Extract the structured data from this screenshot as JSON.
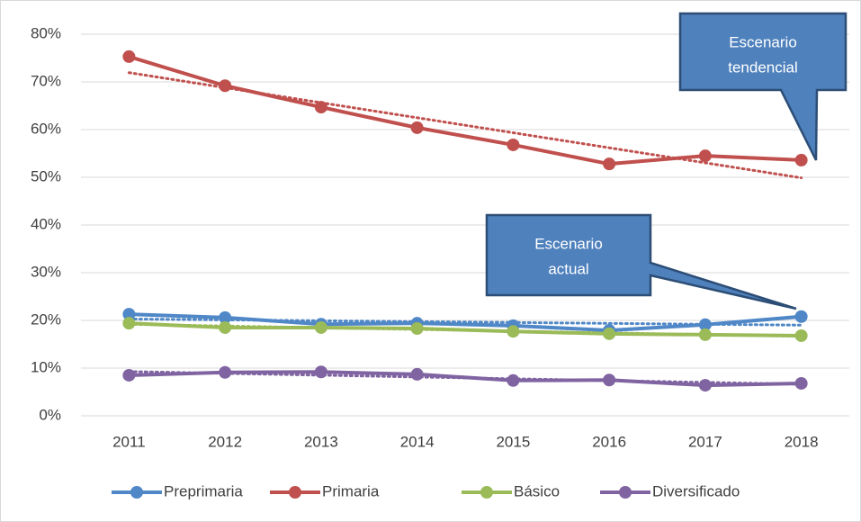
{
  "chart_data": {
    "type": "line",
    "categories": [
      "2011",
      "2012",
      "2013",
      "2014",
      "2015",
      "2016",
      "2017",
      "2018"
    ],
    "ylim": [
      0,
      80
    ],
    "yticks": [
      {
        "value": 0,
        "label": "0%"
      },
      {
        "value": 10,
        "label": "10%"
      },
      {
        "value": 20,
        "label": "20%"
      },
      {
        "value": 30,
        "label": "30%"
      },
      {
        "value": 40,
        "label": "40%"
      },
      {
        "value": 50,
        "label": "50%"
      },
      {
        "value": 60,
        "label": "60%"
      },
      {
        "value": 70,
        "label": "70%"
      },
      {
        "value": 80,
        "label": "80%"
      }
    ],
    "grid": true,
    "legend": "bottom",
    "trendline": true,
    "series": [
      {
        "name": "Preprimaria",
        "color": "#4f87c7",
        "values": [
          21.3,
          20.6,
          19.2,
          19.4,
          18.9,
          17.9,
          19.1,
          20.8
        ]
      },
      {
        "name": "Primaria",
        "color": "#c0504d",
        "values": [
          75.3,
          69.2,
          64.7,
          60.4,
          56.8,
          52.8,
          54.5,
          53.6
        ]
      },
      {
        "name": "Básico",
        "color": "#9bbb59",
        "values": [
          19.4,
          18.5,
          18.5,
          18.3,
          17.7,
          17.2,
          17.0,
          16.8
        ]
      },
      {
        "name": "Diversificado",
        "color": "#8064a2",
        "values": [
          8.5,
          9.1,
          9.2,
          8.7,
          7.4,
          7.5,
          6.4,
          6.8
        ]
      }
    ],
    "annotations": [
      {
        "lines": [
          "Escenario",
          "tendencial"
        ]
      },
      {
        "lines": [
          "Escenario",
          "actual"
        ]
      }
    ]
  }
}
